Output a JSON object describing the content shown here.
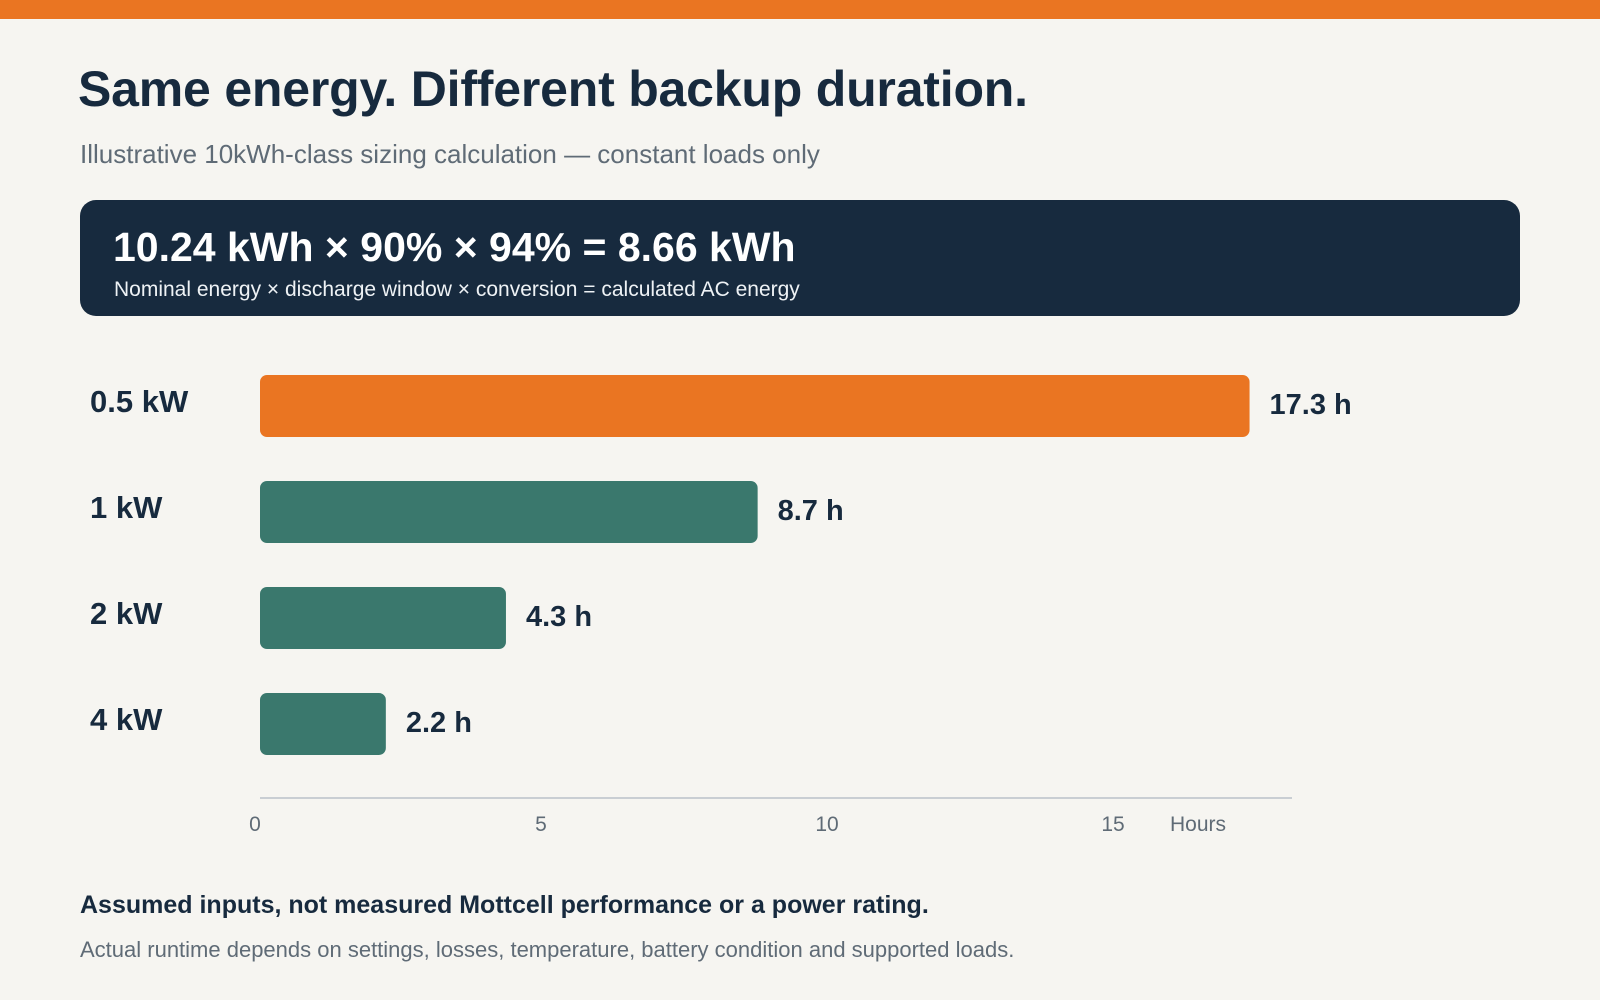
{
  "colors": {
    "accent": "#ea7522",
    "navy": "#172a3e",
    "teal": "#3a786d",
    "background": "#f6f5f1",
    "muted": "#5f6b76",
    "axis": "#c9ced3"
  },
  "header": {
    "title": "Same energy. Different backup duration.",
    "subtitle": "Illustrative 10kWh-class sizing calculation — constant loads only"
  },
  "formula": {
    "equation": "10.24 kWh × 90% × 94% = 8.66 kWh",
    "caption": "Nominal energy × discharge window × conversion = calculated AC energy"
  },
  "chart_data": {
    "type": "bar",
    "orientation": "horizontal",
    "title": "",
    "categories": [
      "0.5 kW",
      "1 kW",
      "2 kW",
      "4 kW"
    ],
    "values": [
      17.3,
      8.7,
      4.3,
      2.2
    ],
    "value_labels": [
      "17.3 h",
      "8.7 h",
      "4.3 h",
      "2.2 h"
    ],
    "highlight_index": 0,
    "xlabel": "Hours",
    "ylabel": "",
    "xlim": [
      0,
      18
    ],
    "xticks": [
      0,
      5,
      10,
      15
    ],
    "grid": false
  },
  "footnote": {
    "title": "Assumed inputs, not measured Mottcell performance or a power rating.",
    "text": "Actual runtime depends on settings, losses, temperature, battery condition and supported loads."
  }
}
